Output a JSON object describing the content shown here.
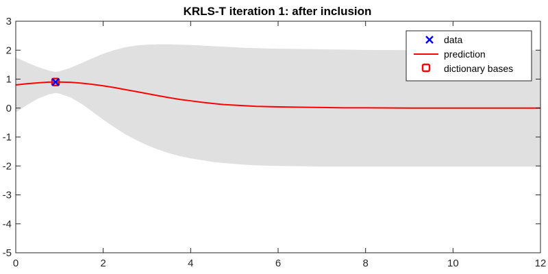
{
  "chart_data": {
    "type": "line",
    "title": "KRLS-T iteration 1: after inclusion",
    "xlabel": "",
    "ylabel": "",
    "xlim": [
      0,
      12
    ],
    "ylim": [
      -5,
      3
    ],
    "xticks": [
      0,
      2,
      4,
      6,
      8,
      10,
      12
    ],
    "yticks": [
      -5,
      -4,
      -3,
      -2,
      -1,
      0,
      1,
      2,
      3
    ],
    "grid": false,
    "legend_position": "top-right",
    "colors": {
      "band": "#e0e0e0",
      "prediction": "#ff0000",
      "data": "#0000ff",
      "dictionary": "#ff0000",
      "axis": "#262626"
    },
    "series": [
      {
        "name": "data",
        "kind": "marker-x",
        "x": [
          0.91
        ],
        "y": [
          0.9
        ]
      },
      {
        "name": "prediction",
        "kind": "line",
        "x": [
          0,
          0.25,
          0.5,
          0.75,
          0.91,
          1.0,
          1.25,
          1.5,
          1.75,
          2.0,
          2.25,
          2.5,
          2.75,
          3.0,
          3.25,
          3.5,
          3.75,
          4.0,
          4.25,
          4.5,
          4.75,
          5.0,
          5.25,
          5.5,
          5.75,
          6.0,
          6.5,
          7.0,
          7.5,
          8.0,
          9.0,
          10.0,
          11.0,
          12.0
        ],
        "y": [
          0.8,
          0.84,
          0.87,
          0.895,
          0.9,
          0.9,
          0.89,
          0.86,
          0.82,
          0.77,
          0.71,
          0.64,
          0.57,
          0.5,
          0.43,
          0.36,
          0.3,
          0.25,
          0.2,
          0.16,
          0.12,
          0.1,
          0.08,
          0.06,
          0.05,
          0.04,
          0.03,
          0.02,
          0.01,
          0.01,
          0.0,
          0.0,
          0.0,
          0.0
        ]
      },
      {
        "name": "dictionary bases",
        "kind": "marker-square",
        "x": [
          0.91
        ],
        "y": [
          0.9
        ]
      },
      {
        "name": "confidence band",
        "kind": "band",
        "x": [
          0,
          0.25,
          0.5,
          0.75,
          0.91,
          1.0,
          1.25,
          1.5,
          1.75,
          2.0,
          2.25,
          2.5,
          2.75,
          3.0,
          3.25,
          3.5,
          3.75,
          4.0,
          4.25,
          4.5,
          4.75,
          5.0,
          5.25,
          5.5,
          5.75,
          6.0,
          6.5,
          7.0,
          7.5,
          8.0,
          9.0,
          10.0,
          11.0,
          12.0
        ],
        "upper": [
          1.75,
          1.58,
          1.42,
          1.3,
          1.25,
          1.27,
          1.39,
          1.55,
          1.72,
          1.88,
          2.0,
          2.1,
          2.16,
          2.19,
          2.2,
          2.2,
          2.19,
          2.18,
          2.16,
          2.14,
          2.12,
          2.1,
          2.08,
          2.07,
          2.06,
          2.05,
          2.04,
          2.03,
          2.02,
          2.01,
          2.0,
          2.0,
          2.0,
          2.0
        ],
        "lower": [
          -0.15,
          0.1,
          0.32,
          0.47,
          0.52,
          0.5,
          0.37,
          0.15,
          -0.12,
          -0.4,
          -0.66,
          -0.9,
          -1.1,
          -1.28,
          -1.43,
          -1.56,
          -1.66,
          -1.74,
          -1.8,
          -1.86,
          -1.9,
          -1.93,
          -1.96,
          -1.98,
          -1.99,
          -2.0,
          -2.01,
          -2.02,
          -2.02,
          -2.02,
          -2.02,
          -2.02,
          -2.02,
          -2.02
        ]
      }
    ],
    "legend": [
      "data",
      "prediction",
      "dictionary bases"
    ]
  }
}
